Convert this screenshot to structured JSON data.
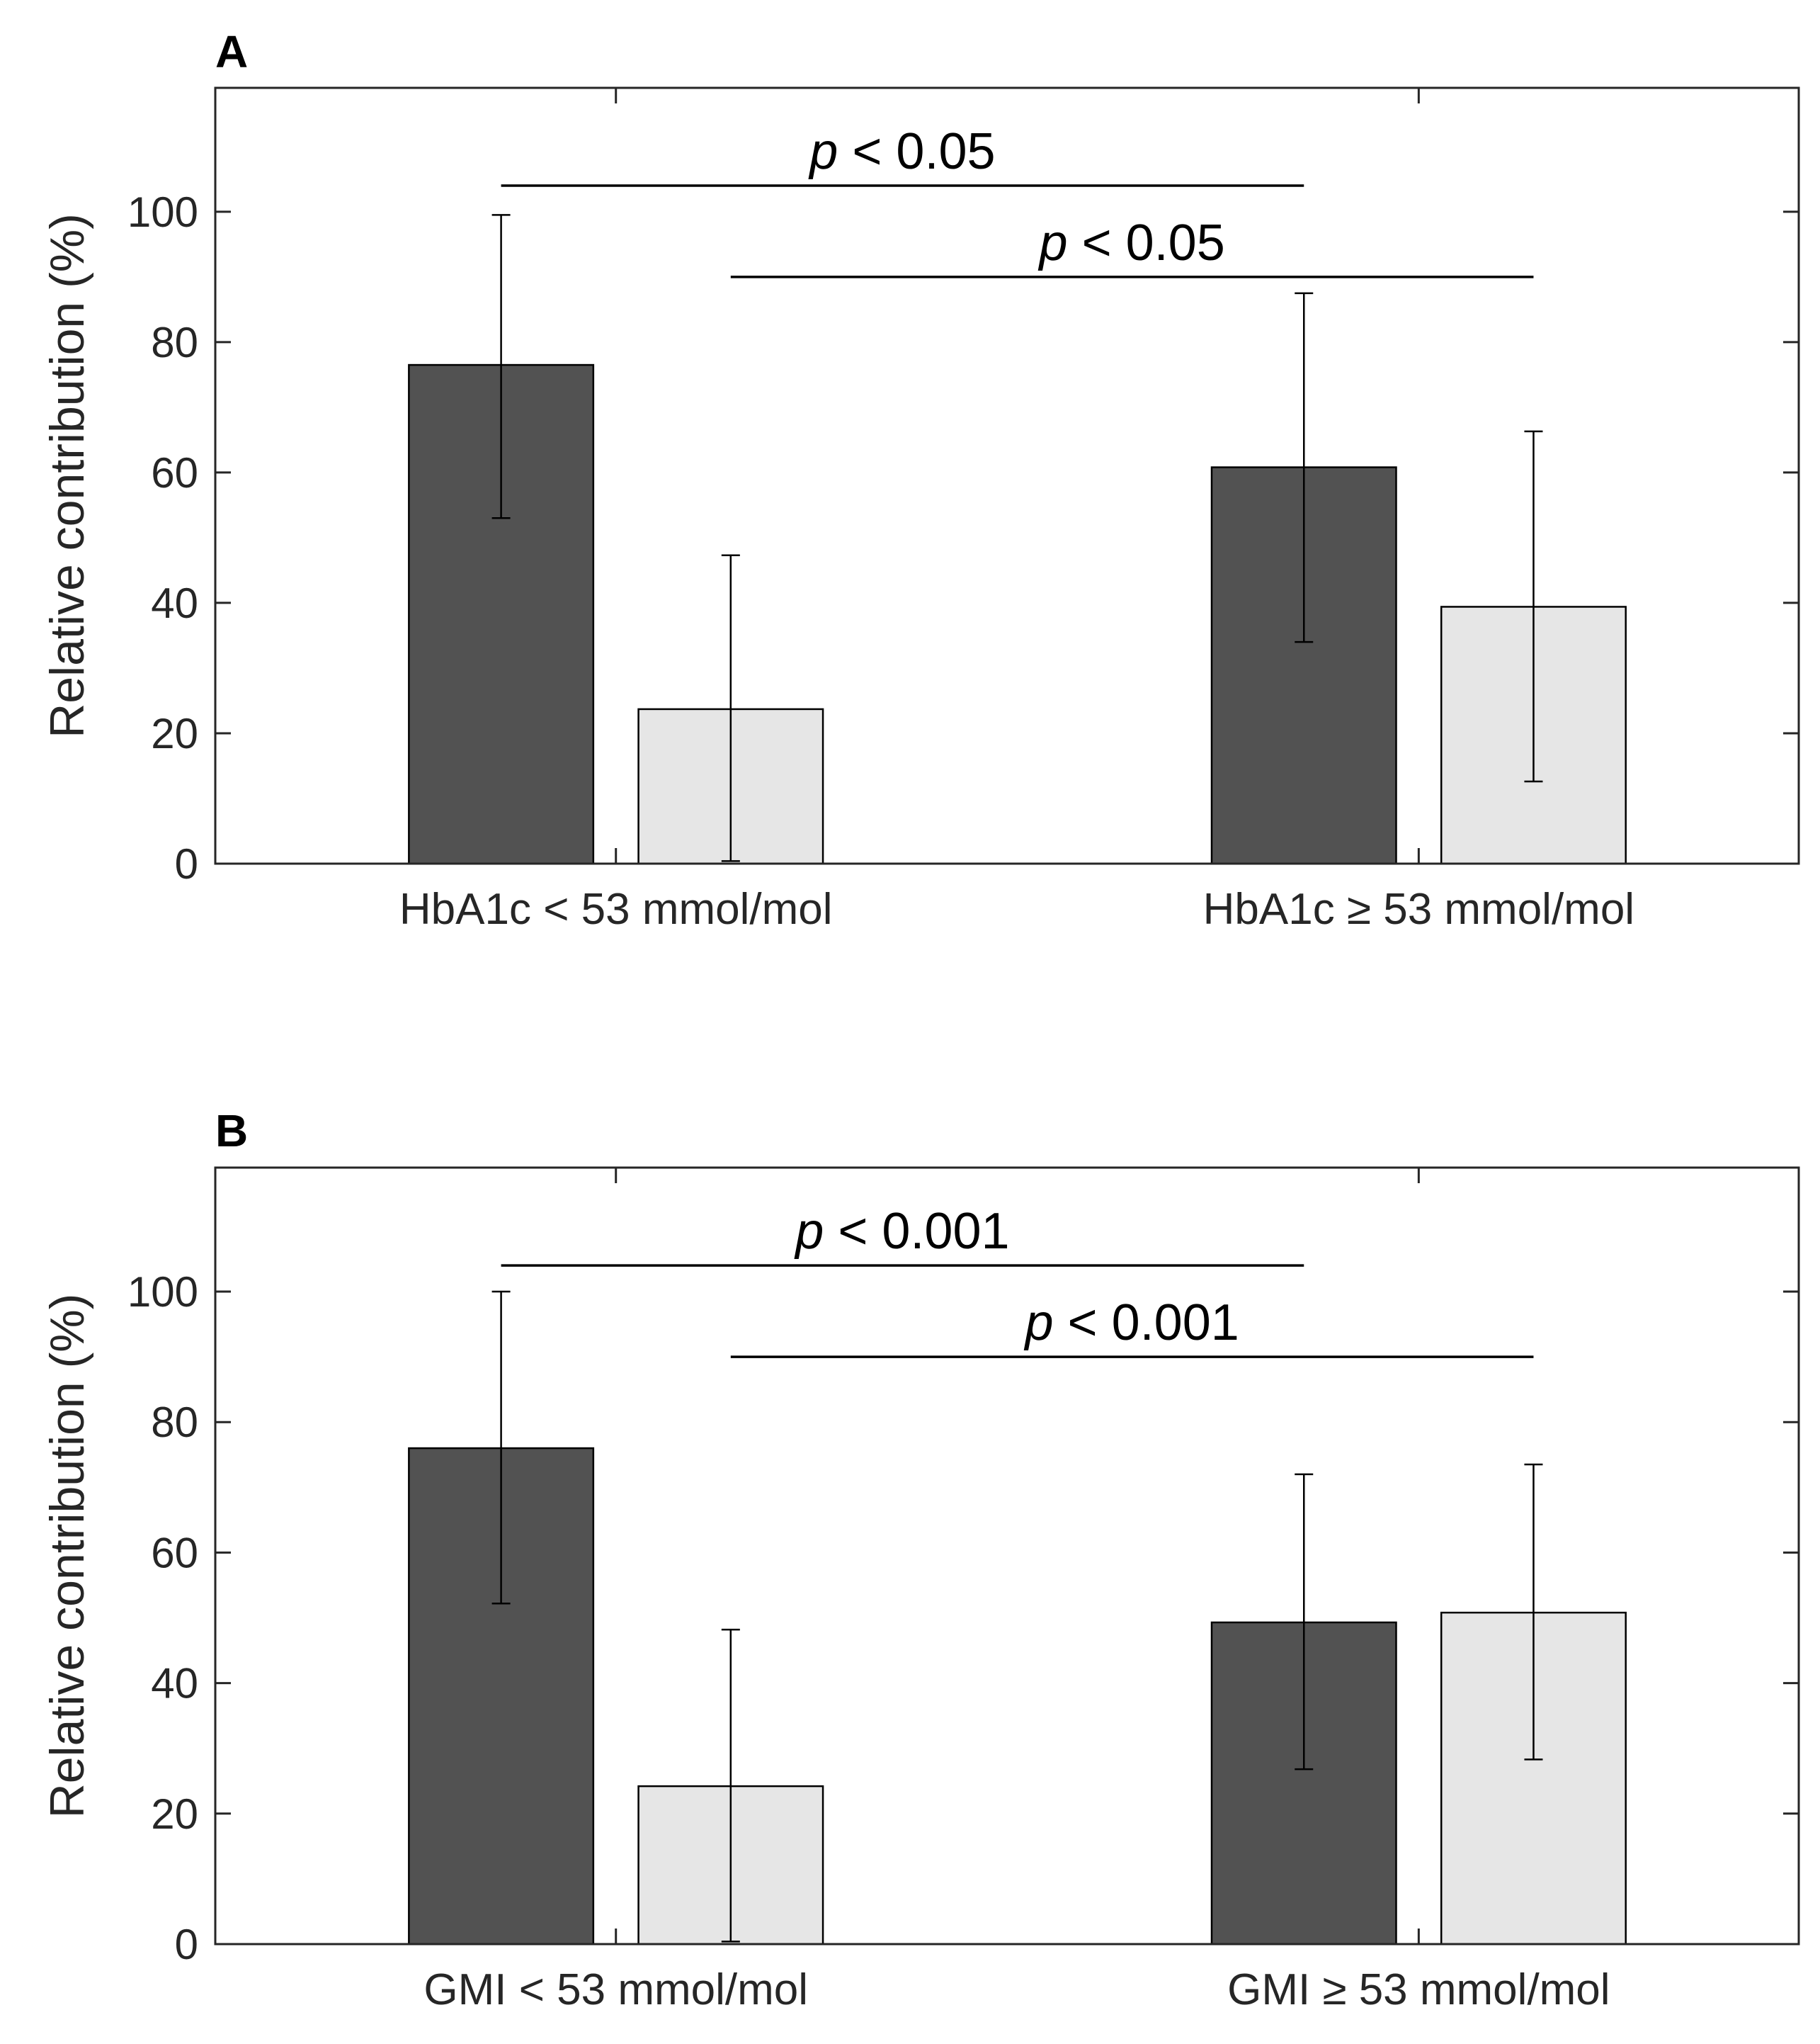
{
  "chart_data": [
    {
      "panel_label": "A",
      "type": "bar",
      "categories": [
        "HbA1c < 53 mmol/mol",
        "HbA1c ≥ 53 mmol/mol"
      ],
      "series": [
        {
          "color": "#525252",
          "values": [
            76.5,
            60.8
          ],
          "err_low": [
            53.0,
            34.0
          ],
          "err_high": [
            99.5,
            87.5
          ]
        },
        {
          "color": "#e6e6e6",
          "values": [
            23.7,
            39.4
          ],
          "err_low": [
            0.4,
            12.6
          ],
          "err_high": [
            47.3,
            66.3
          ]
        }
      ],
      "ylabel": "Relative contribution (%)",
      "ylim": [
        0,
        119
      ],
      "yticks": [
        0,
        20,
        40,
        60,
        80,
        100
      ],
      "significance": [
        {
          "from": [
            0,
            0
          ],
          "to": [
            1,
            0
          ],
          "y": 104,
          "p_symbol": "p",
          "text": " < 0.05"
        },
        {
          "from": [
            0,
            1
          ],
          "to": [
            1,
            1
          ],
          "y": 90,
          "p_symbol": "p",
          "text": " < 0.05"
        }
      ]
    },
    {
      "panel_label": "B",
      "type": "bar",
      "categories": [
        "GMI < 53 mmol/mol",
        "GMI ≥ 53 mmol/mol"
      ],
      "series": [
        {
          "color": "#525252",
          "values": [
            76.0,
            49.3
          ],
          "err_low": [
            52.2,
            26.8
          ],
          "err_high": [
            100.0,
            72.0
          ]
        },
        {
          "color": "#e6e6e6",
          "values": [
            24.2,
            50.8
          ],
          "err_low": [
            0.4,
            28.3
          ],
          "err_high": [
            48.2,
            73.5
          ]
        }
      ],
      "ylabel": "Relative contribution (%)",
      "ylim": [
        0,
        119
      ],
      "yticks": [
        0,
        20,
        40,
        60,
        80,
        100
      ],
      "significance": [
        {
          "from": [
            0,
            0
          ],
          "to": [
            1,
            0
          ],
          "y": 104,
          "p_symbol": "p",
          "text": " < 0.001"
        },
        {
          "from": [
            0,
            1
          ],
          "to": [
            1,
            1
          ],
          "y": 90,
          "p_symbol": "p",
          "text": " < 0.001"
        }
      ]
    }
  ]
}
